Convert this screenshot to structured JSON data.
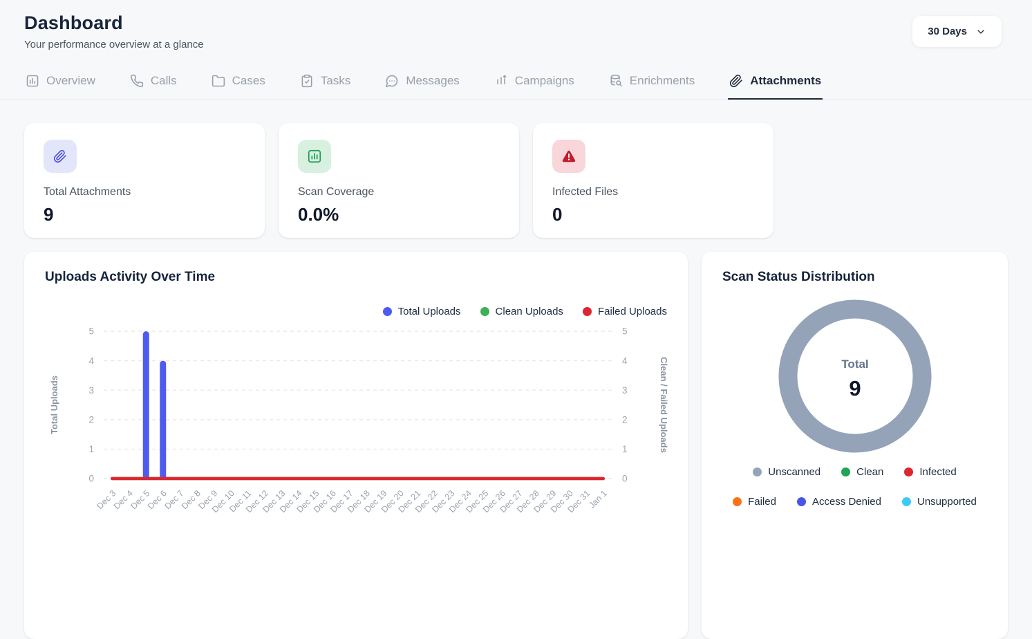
{
  "header": {
    "title": "Dashboard",
    "subtitle": "Your performance overview at a glance",
    "range_label": "30 Days"
  },
  "tabs": [
    {
      "label": "Overview",
      "icon": "overview-icon",
      "active": false
    },
    {
      "label": "Calls",
      "icon": "phone-icon",
      "active": false
    },
    {
      "label": "Cases",
      "icon": "folder-icon",
      "active": false
    },
    {
      "label": "Tasks",
      "icon": "clipboard-icon",
      "active": false
    },
    {
      "label": "Messages",
      "icon": "chat-icon",
      "active": false
    },
    {
      "label": "Campaigns",
      "icon": "campaign-icon",
      "active": false
    },
    {
      "label": "Enrichments",
      "icon": "enrichment-icon",
      "active": false
    },
    {
      "label": "Attachments",
      "icon": "paperclip-icon",
      "active": true
    }
  ],
  "stats": [
    {
      "label": "Total Attachments",
      "value": "9",
      "icon": "paperclip-icon",
      "icon_color": "#4a4fe0",
      "icon_bg": "#e3e6fb"
    },
    {
      "label": "Scan Coverage",
      "value": "0.0%",
      "icon": "bar-chart-icon",
      "icon_color": "#1d9e54",
      "icon_bg": "#d8f0e0"
    },
    {
      "label": "Infected Files",
      "value": "0",
      "icon": "warning-icon",
      "icon_color": "#c11d2e",
      "icon_bg": "#f8d6da"
    }
  ],
  "uploads_chart": {
    "title": "Uploads Activity Over Time"
  },
  "scan_distribution": {
    "title": "Scan Status Distribution"
  },
  "chart_data": [
    {
      "type": "bar",
      "title": "Uploads Activity Over Time",
      "categories": [
        "Dec 3",
        "Dec 4",
        "Dec 5",
        "Dec 6",
        "Dec 7",
        "Dec 8",
        "Dec 9",
        "Dec 10",
        "Dec 11",
        "Dec 12",
        "Dec 13",
        "Dec 14",
        "Dec 15",
        "Dec 16",
        "Dec 17",
        "Dec 18",
        "Dec 19",
        "Dec 20",
        "Dec 21",
        "Dec 22",
        "Dec 23",
        "Dec 24",
        "Dec 25",
        "Dec 26",
        "Dec 27",
        "Dec 28",
        "Dec 29",
        "Dec 30",
        "Dec 31",
        "Jan 1"
      ],
      "series": [
        {
          "name": "Total Uploads",
          "kind": "bar",
          "color": "#4e5bf0",
          "axis": "left",
          "values": [
            0,
            0,
            5,
            4,
            0,
            0,
            0,
            0,
            0,
            0,
            0,
            0,
            0,
            0,
            0,
            0,
            0,
            0,
            0,
            0,
            0,
            0,
            0,
            0,
            0,
            0,
            0,
            0,
            0,
            0
          ]
        },
        {
          "name": "Clean Uploads",
          "kind": "line",
          "color": "#3fae56",
          "axis": "right",
          "values": [
            0,
            0,
            0,
            0,
            0,
            0,
            0,
            0,
            0,
            0,
            0,
            0,
            0,
            0,
            0,
            0,
            0,
            0,
            0,
            0,
            0,
            0,
            0,
            0,
            0,
            0,
            0,
            0,
            0,
            0
          ]
        },
        {
          "name": "Failed Uploads",
          "kind": "line",
          "color": "#dc2632",
          "axis": "right",
          "values": [
            0,
            0,
            0,
            0,
            0,
            0,
            0,
            0,
            0,
            0,
            0,
            0,
            0,
            0,
            0,
            0,
            0,
            0,
            0,
            0,
            0,
            0,
            0,
            0,
            0,
            0,
            0,
            0,
            0,
            0
          ]
        }
      ],
      "left_axis": {
        "label": "Total Uploads",
        "min": 0,
        "max": 5,
        "ticks": [
          0,
          1,
          2,
          3,
          4,
          5
        ]
      },
      "right_axis": {
        "label": "Clean / Failed Uploads",
        "min": 0,
        "max": 5,
        "ticks": [
          0,
          1,
          2,
          3,
          4,
          5
        ]
      },
      "grid": "dashed-horizontal",
      "legend_position": "top-right"
    },
    {
      "type": "donut",
      "title": "Scan Status Distribution",
      "center_label": "Total",
      "center_value": "9",
      "segments": [
        {
          "label": "Unscanned",
          "value": 9,
          "color": "#94a3b8"
        },
        {
          "label": "Clean",
          "value": 0,
          "color": "#22a456"
        },
        {
          "label": "Infected",
          "value": 0,
          "color": "#dc2632"
        },
        {
          "label": "Failed",
          "value": 0,
          "color": "#f97316"
        },
        {
          "label": "Access Denied",
          "value": 0,
          "color": "#4a55e8"
        },
        {
          "label": "Unsupported",
          "value": 0,
          "color": "#3ec9f5"
        }
      ],
      "legend_rows": [
        3,
        3
      ]
    }
  ]
}
